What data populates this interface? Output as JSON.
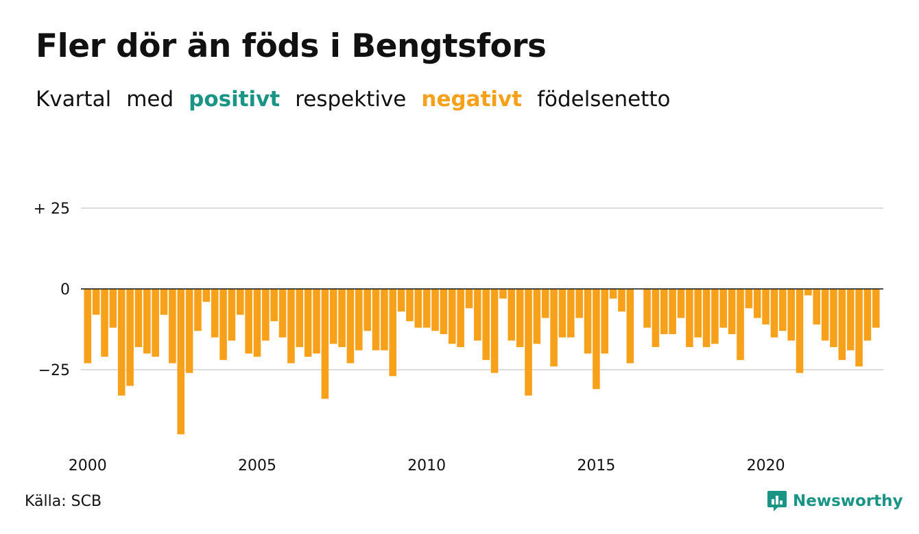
{
  "title": "Fler dör än föds i Bengtsfors",
  "subtitle": {
    "part1": "Kvartal",
    "part2": "med",
    "positive_word": "positivt",
    "part3": "respektive",
    "negative_word": "negativt",
    "part4": "födelsenetto"
  },
  "colors": {
    "positive": "#1a9485",
    "negative": "#f7a11b",
    "grid": "#dddddd",
    "zero_line": "#111111"
  },
  "source": "Källa: SCB",
  "brand": {
    "name": "Newsworthy",
    "icon": "newsworthy-logo-icon"
  },
  "chart_data": {
    "type": "bar",
    "title": "Fler dör än föds i Bengtsfors",
    "xlabel": "",
    "ylabel": "",
    "x_start": "2000 Q1",
    "x_ticks": [
      2000,
      2005,
      2010,
      2015,
      2020
    ],
    "y_ticks": [
      {
        "value": 25,
        "label": "+ 25"
      },
      {
        "value": 0,
        "label": "0"
      },
      {
        "value": -25,
        "label": "−25"
      }
    ],
    "ylim": [
      -45,
      25
    ],
    "grid": true,
    "legend": "none",
    "values": [
      -23,
      -8,
      -21,
      -12,
      -33,
      -30,
      -18,
      -20,
      -21,
      -8,
      -23,
      -45,
      -26,
      -13,
      -4,
      -15,
      -22,
      -16,
      -8,
      -20,
      -21,
      -16,
      -10,
      -15,
      -23,
      -18,
      -21,
      -20,
      -34,
      -17,
      -18,
      -23,
      -19,
      -13,
      -19,
      -19,
      -27,
      -7,
      -10,
      -12,
      -12,
      -13,
      -14,
      -17,
      -18,
      -6,
      -16,
      -22,
      -26,
      -3,
      -16,
      -18,
      -33,
      -17,
      -9,
      -24,
      -15,
      -15,
      -9,
      -20,
      -31,
      -20,
      -3,
      -7,
      -23,
      0,
      -12,
      -18,
      -14,
      -14,
      -9,
      -18,
      -15,
      -18,
      -17,
      -12,
      -14,
      -22,
      -6,
      -9,
      -11,
      -15,
      -13,
      -16,
      -26,
      -2,
      -11,
      -16,
      -18,
      -22,
      -19,
      -24,
      -16,
      -12
    ]
  }
}
